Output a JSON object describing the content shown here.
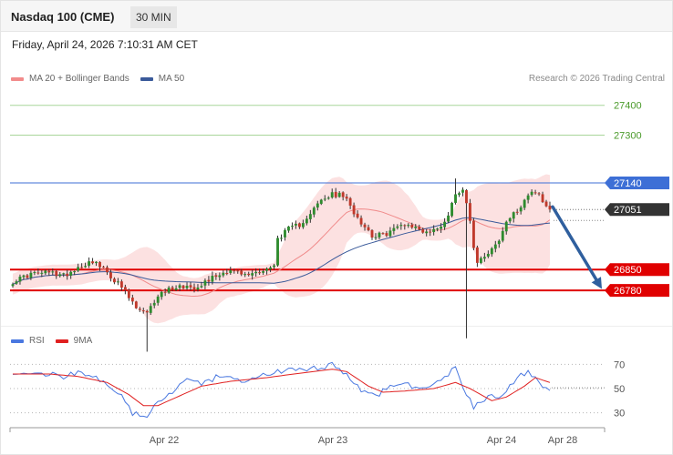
{
  "header": {
    "title": "Nasdaq 100 (CME)",
    "timeframe": "30 MIN"
  },
  "timestamp": "Friday, April 24, 2026 7:10:31 AM CET",
  "credit": "Research © 2026 Trading Central",
  "legend_price": [
    {
      "label": "MA 20 + Bollinger Bands",
      "color": "#f28b8b"
    },
    {
      "label": "MA 50",
      "color": "#3a5a9a"
    }
  ],
  "legend_rsi": [
    {
      "label": "RSI",
      "color": "#4a78e0"
    },
    {
      "label": "9MA",
      "color": "#e02020"
    }
  ],
  "colors": {
    "up": "#2e8b2e",
    "down": "#c0392b",
    "wick": "#333333",
    "band_fill": "#fbdcdc",
    "ma20": "#f08a8a",
    "ma50": "#3a5a9a",
    "target_lines": "#a8d59a",
    "pivot": "#3d6fd6",
    "support": "#e00000",
    "last_price": "#333333",
    "arrow": "#2f5f9e"
  },
  "chart_data": [
    {
      "type": "candlestick",
      "title": "Nasdaq 100 (CME)",
      "interval": "30 MIN",
      "ylim": [
        26680,
        27460
      ],
      "x_ticks": [
        "Apr 22",
        "Apr 23",
        "Apr 24",
        "Apr 28"
      ],
      "price_levels": [
        {
          "value": 27400,
          "label": "27400",
          "style": "target"
        },
        {
          "value": 27300,
          "label": "27300",
          "style": "target"
        },
        {
          "value": 27140,
          "label": "27140",
          "style": "pivot"
        },
        {
          "value": 27051,
          "label": "27051",
          "style": "last"
        },
        {
          "value": 26850,
          "label": "26850",
          "style": "support"
        },
        {
          "value": 26780,
          "label": "26780",
          "style": "support"
        }
      ],
      "forecast_arrow": {
        "from": 27060,
        "to": 26785
      },
      "waypoints": [
        [
          0,
          26810
        ],
        [
          5,
          26835
        ],
        [
          10,
          26840
        ],
        [
          14,
          26830
        ],
        [
          18,
          26858
        ],
        [
          22,
          26880
        ],
        [
          26,
          26840
        ],
        [
          30,
          26790
        ],
        [
          34,
          26720
        ],
        [
          37,
          26700
        ],
        [
          40,
          26765
        ],
        [
          44,
          26790
        ],
        [
          47,
          26795
        ],
        [
          50,
          26790
        ],
        [
          53,
          26810
        ],
        [
          56,
          26830
        ],
        [
          60,
          26850
        ],
        [
          64,
          26830
        ],
        [
          68,
          26845
        ],
        [
          72,
          26860
        ],
        [
          73,
          26955
        ],
        [
          76,
          26985
        ],
        [
          79,
          27000
        ],
        [
          82,
          27040
        ],
        [
          85,
          27080
        ],
        [
          88,
          27100
        ],
        [
          91,
          27098
        ],
        [
          93,
          27060
        ],
        [
          96,
          27010
        ],
        [
          99,
          26965
        ],
        [
          102,
          26965
        ],
        [
          105,
          26985
        ],
        [
          108,
          27005
        ],
        [
          111,
          26990
        ],
        [
          114,
          26975
        ],
        [
          117,
          26985
        ],
        [
          120,
          27030
        ],
        [
          122,
          27110
        ],
        [
          124,
          27118
        ],
        [
          125,
          27080
        ],
        [
          127,
          26930
        ],
        [
          128,
          26880
        ],
        [
          130,
          26900
        ],
        [
          132,
          26920
        ],
        [
          134,
          26945
        ],
        [
          136,
          27010
        ],
        [
          139,
          27045
        ],
        [
          141,
          27088
        ],
        [
          143,
          27110
        ],
        [
          145,
          27095
        ],
        [
          147,
          27060
        ],
        [
          148,
          27051
        ]
      ],
      "tall_wicks": [
        {
          "index": 37,
          "low": 26575
        },
        {
          "index": 125,
          "low": 26620
        },
        {
          "index": 122,
          "high": 27155
        }
      ]
    },
    {
      "type": "line",
      "title": "RSI",
      "ylim": [
        20,
        80
      ],
      "y_ticks": [
        70,
        50,
        30
      ],
      "series": [
        {
          "name": "RSI",
          "waypoints": [
            [
              0,
              64
            ],
            [
              5,
              61
            ],
            [
              10,
              63
            ],
            [
              14,
              58
            ],
            [
              18,
              65
            ],
            [
              22,
              60
            ],
            [
              26,
              52
            ],
            [
              30,
              43
            ],
            [
              33,
              30
            ],
            [
              36,
              25
            ],
            [
              40,
              38
            ],
            [
              44,
              47
            ],
            [
              48,
              56
            ],
            [
              52,
              54
            ],
            [
              56,
              59
            ],
            [
              60,
              58
            ],
            [
              64,
              55
            ],
            [
              68,
              60
            ],
            [
              72,
              63
            ],
            [
              76,
              66
            ],
            [
              80,
              64
            ],
            [
              84,
              67
            ],
            [
              88,
              70
            ],
            [
              92,
              62
            ],
            [
              96,
              48
            ],
            [
              100,
              44
            ],
            [
              104,
              52
            ],
            [
              108,
              55
            ],
            [
              112,
              50
            ],
            [
              116,
              52
            ],
            [
              120,
              62
            ],
            [
              122,
              68
            ],
            [
              125,
              45
            ],
            [
              127,
              35
            ],
            [
              130,
              42
            ],
            [
              134,
              44
            ],
            [
              138,
              55
            ],
            [
              141,
              63
            ],
            [
              144,
              62
            ],
            [
              146,
              52
            ],
            [
              148,
              48
            ]
          ]
        },
        {
          "name": "9MA",
          "waypoints": [
            [
              0,
              62
            ],
            [
              10,
              62
            ],
            [
              18,
              60
            ],
            [
              26,
              55
            ],
            [
              32,
              45
            ],
            [
              36,
              36
            ],
            [
              40,
              36
            ],
            [
              46,
              44
            ],
            [
              52,
              52
            ],
            [
              60,
              56
            ],
            [
              70,
              59
            ],
            [
              80,
              63
            ],
            [
              88,
              66
            ],
            [
              92,
              64
            ],
            [
              98,
              52
            ],
            [
              102,
              47
            ],
            [
              108,
              48
            ],
            [
              116,
              50
            ],
            [
              122,
              55
            ],
            [
              126,
              50
            ],
            [
              132,
              40
            ],
            [
              136,
              43
            ],
            [
              141,
              52
            ],
            [
              144,
              59
            ],
            [
              148,
              55
            ]
          ]
        }
      ]
    }
  ]
}
